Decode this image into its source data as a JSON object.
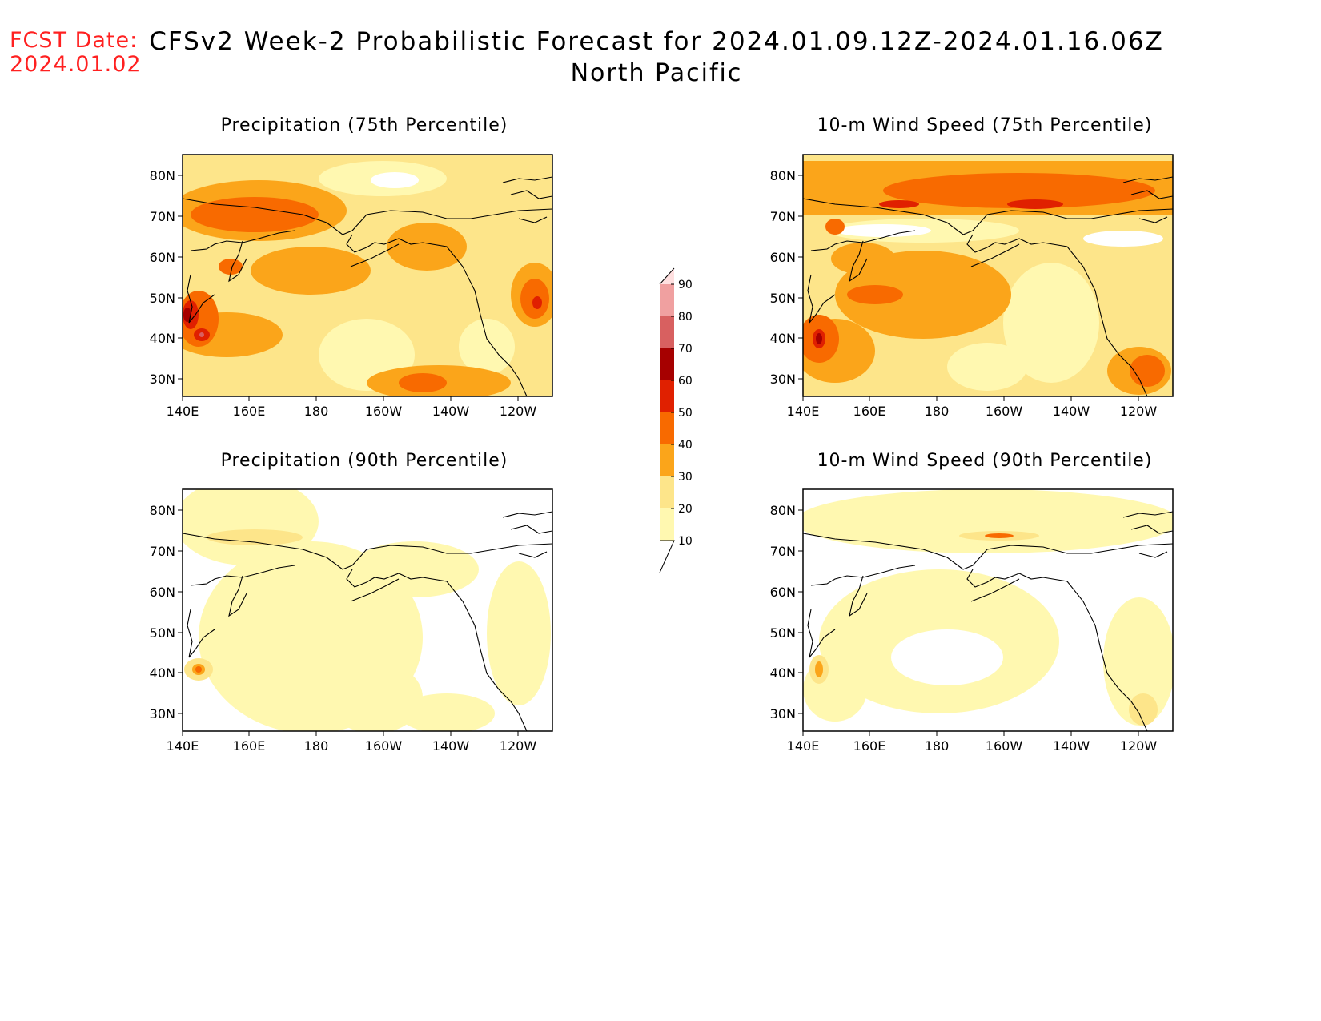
{
  "header": {
    "fcst_label": "FCST Date:",
    "fcst_date": "2024.01.02",
    "title": "CFSv2 Week-2 Probabilistic Forecast for 2024.01.09.12Z-2024.01.16.06Z",
    "subtitle": "North Pacific"
  },
  "axes": {
    "lon_labels": [
      "140E",
      "160E",
      "180",
      "160W",
      "140W",
      "120W"
    ],
    "lat_labels": [
      "80N",
      "70N",
      "60N",
      "50N",
      "40N",
      "30N"
    ]
  },
  "panels": [
    {
      "id": "precip75",
      "title": "Precipitation (75th Percentile)"
    },
    {
      "id": "wind75",
      "title": "10-m Wind Speed (75th Percentile)"
    },
    {
      "id": "precip90",
      "title": "Precipitation (90th Percentile)"
    },
    {
      "id": "wind90",
      "title": "10-m Wind Speed (90th Percentile)"
    }
  ],
  "colorbar": {
    "levels": [
      "10",
      "20",
      "30",
      "40",
      "50",
      "60",
      "70",
      "80",
      "90"
    ],
    "colors": [
      "#fff8b0",
      "#fde58a",
      "#fba51a",
      "#f86a00",
      "#e02000",
      "#a60000",
      "#d86060",
      "#f0a0a0",
      "#ffe0e0"
    ]
  }
}
